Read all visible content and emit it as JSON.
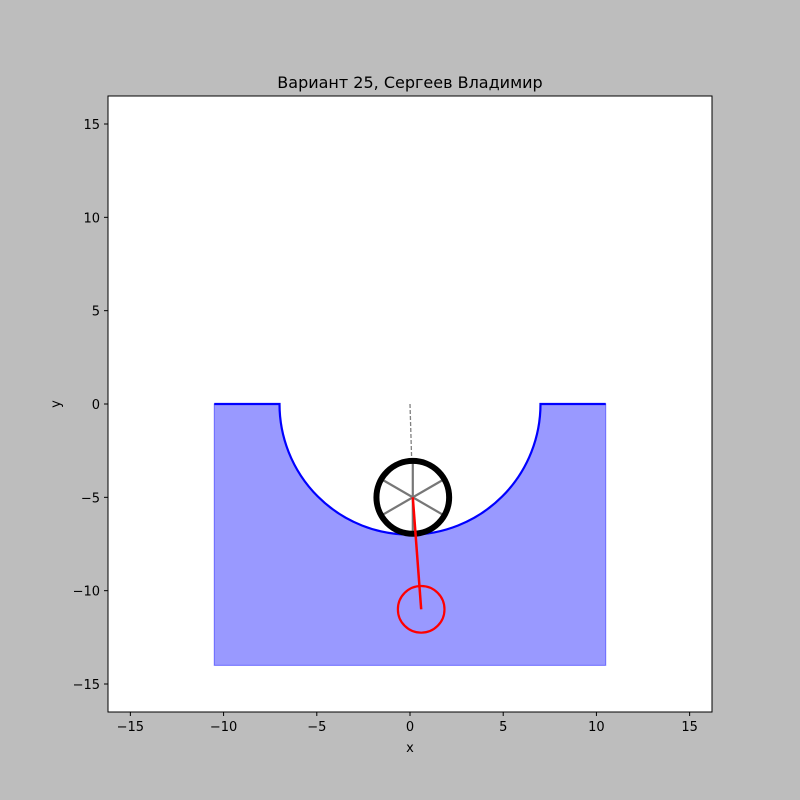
{
  "figure": {
    "background": "#bdbdbd"
  },
  "chart_data": {
    "type": "line",
    "title": "Вариант 25, Сергеев Владимир",
    "xlabel": "x",
    "ylabel": "y",
    "xlim": [
      -16.2,
      16.2
    ],
    "ylim": [
      -16.5,
      16.5
    ],
    "xticks": [
      -15,
      -10,
      -5,
      0,
      5,
      10,
      15
    ],
    "yticks": [
      -15,
      -10,
      -5,
      0,
      5,
      10,
      15
    ],
    "xtick_labels": [
      "−15",
      "−10",
      "−5",
      "0",
      "5",
      "10",
      "15"
    ],
    "ytick_labels": [
      "−15",
      "−10",
      "−5",
      "0",
      "5",
      "10",
      "15"
    ],
    "grid": false,
    "legend": "none",
    "surface": {
      "left_plateau": [
        [
          -10.5,
          0
        ],
        [
          -7,
          0
        ]
      ],
      "bowl_center": [
        0,
        0
      ],
      "bowl_radius": 7,
      "right_plateau": [
        [
          7,
          0
        ],
        [
          10.5,
          0
        ]
      ],
      "fill_bottom": -14,
      "line_color": "#0000ff",
      "fill_color": "#9999ff"
    },
    "wheel": {
      "center": [
        0.15,
        -5
      ],
      "radius": 1.95,
      "spoke_angles_deg": [
        30,
        90,
        150
      ],
      "rim_color": "#000000",
      "spoke_color": "#777777"
    },
    "guide_line": {
      "from": [
        0,
        0
      ],
      "to": [
        0.15,
        -5
      ],
      "color": "#808080",
      "style": "dashed"
    },
    "pendulum": {
      "pivot": [
        0.15,
        -5
      ],
      "bob": [
        0.6,
        -11
      ],
      "bob_radius": 1.25,
      "color": "#ff0000"
    }
  }
}
